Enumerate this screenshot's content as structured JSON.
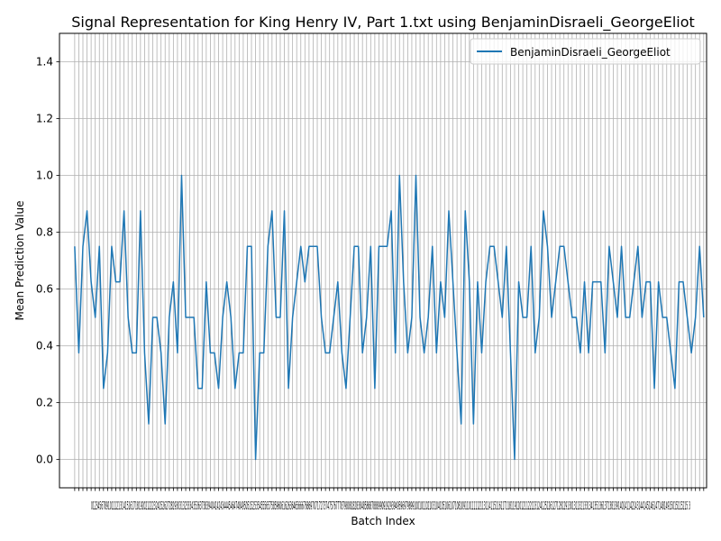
{
  "chart_data": {
    "type": "line",
    "title": "Signal Representation for King Henry IV, Part 1.txt using BenjaminDisraeli_GeorgeEliot",
    "xlabel": "Batch Index",
    "ylabel": "Mean Prediction Value",
    "xlim": [
      -3.7,
      153.7
    ],
    "ylim": [
      -0.1,
      1.5
    ],
    "yticks": [
      0.0,
      0.2,
      0.4,
      0.6,
      0.8,
      1.0,
      1.2,
      1.4
    ],
    "ytick_labels": [
      "0.0",
      "0.2",
      "0.4",
      "0.6",
      "0.8",
      "1.0",
      "1.2",
      "1.4"
    ],
    "x_tick_labels_text": "012345678910111213141516171819202122232425262728293031323334353637383940414243444546474849505152535455565758596061626364656667686970717273747576777879808182838485868788899091929394959697989910010110210310410510610710810911011111211311411511611711811912012112212312412512612712812913013113213313413513613713813914014114214314414514614714814915015115215 3",
    "grid": true,
    "legend_position": "upper-right",
    "series": [
      {
        "name": "BenjaminDisraeli_GeorgeEliot",
        "color": "#1f77b4",
        "values": [
          0.75,
          0.375,
          0.75,
          0.875,
          0.625,
          0.5,
          0.75,
          0.25,
          0.375,
          0.75,
          0.625,
          0.625,
          0.875,
          0.5,
          0.375,
          0.375,
          0.875,
          0.375,
          0.125,
          0.5,
          0.5,
          0.375,
          0.125,
          0.5,
          0.625,
          0.375,
          1.0,
          0.5,
          0.5,
          0.5,
          0.25,
          0.25,
          0.625,
          0.375,
          0.375,
          0.25,
          0.5,
          0.625,
          0.5,
          0.25,
          0.375,
          0.375,
          0.75,
          0.75,
          0.0,
          0.375,
          0.375,
          0.75,
          0.875,
          0.5,
          0.5,
          0.875,
          0.25,
          0.5,
          0.625,
          0.75,
          0.625,
          0.75,
          0.75,
          0.75,
          0.5,
          0.375,
          0.375,
          0.5,
          0.625,
          0.375,
          0.25,
          0.5,
          0.75,
          0.75,
          0.375,
          0.5,
          0.75,
          0.25,
          0.75,
          0.75,
          0.75,
          0.875,
          0.375,
          1.0,
          0.625,
          0.375,
          0.5,
          1.0,
          0.5,
          0.375,
          0.5,
          0.75,
          0.375,
          0.625,
          0.5,
          0.875,
          0.625,
          0.375,
          0.125,
          0.875,
          0.625,
          0.125,
          0.625,
          0.375,
          0.625,
          0.75,
          0.75,
          0.625,
          0.5,
          0.75,
          0.375,
          0.0,
          0.625,
          0.5,
          0.5,
          0.75,
          0.375,
          0.5,
          0.875,
          0.75,
          0.5,
          0.625,
          0.75,
          0.75,
          0.625,
          0.5,
          0.5,
          0.375,
          0.625,
          0.375,
          0.625,
          0.625,
          0.625,
          0.375,
          0.75,
          0.625,
          0.5,
          0.75,
          0.5,
          0.5,
          0.625,
          0.75,
          0.5,
          0.625,
          0.625,
          0.25,
          0.625,
          0.5,
          0.5,
          0.375,
          0.25,
          0.625,
          0.625,
          0.5,
          0.375,
          0.5,
          0.75,
          0.5
        ]
      }
    ]
  }
}
